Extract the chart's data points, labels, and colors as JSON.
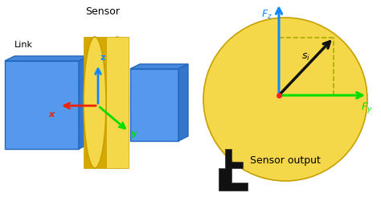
{
  "bg_color": "#ffffff",
  "sensor_color": "#f5d84a",
  "sensor_edge": "#c8a000",
  "sensor_dark": "#d4a800",
  "link_color": "#5599ee",
  "link_color2": "#4488dd",
  "link_edge": "#2266bb",
  "title_left": "Sensor",
  "title_right": "Sensor output",
  "link_label": "Link",
  "arrow_z_color": "#1188ff",
  "arrow_y_color": "#00dd00",
  "arrow_x_color": "#ee2200",
  "arrow_s_color": "#111111",
  "dashed_color": "#aaaa00",
  "hand_color": "#111111",
  "dot_color": "#ff2222"
}
